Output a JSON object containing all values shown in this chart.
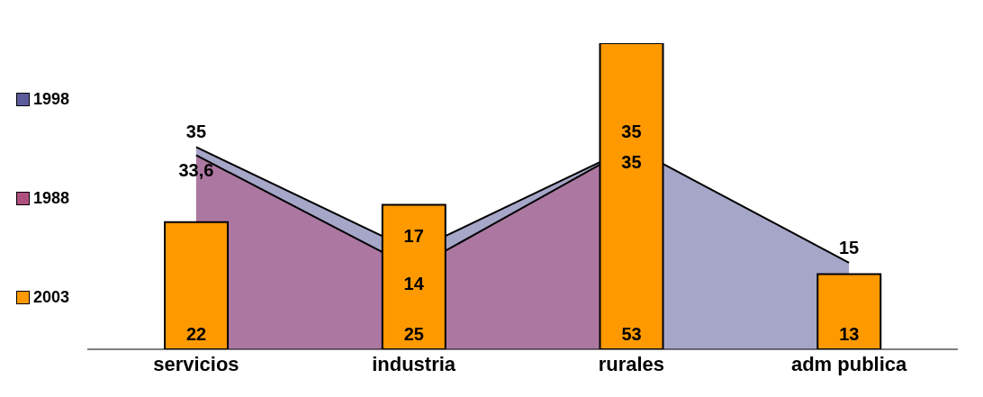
{
  "chart_data": {
    "type": "area",
    "categories": [
      "servicios",
      "industria",
      "rurales",
      "adm publica"
    ],
    "series": [
      {
        "name": "1998",
        "color": "#5c5c9c",
        "values": [
          35,
          17,
          35,
          15
        ],
        "value_labels": [
          "35",
          "17",
          "35",
          "15"
        ]
      },
      {
        "name": "1988",
        "color": "#b0507f",
        "values": [
          33.6,
          14,
          35,
          null
        ],
        "value_labels": [
          "33,6",
          "14",
          "35",
          null
        ]
      },
      {
        "name": "2003",
        "type": "bar",
        "color": "#ff9900",
        "values": [
          22,
          25,
          53,
          13
        ],
        "value_labels": [
          "22",
          "25",
          "53",
          "13"
        ]
      }
    ],
    "legend": "left",
    "grid": false
  }
}
